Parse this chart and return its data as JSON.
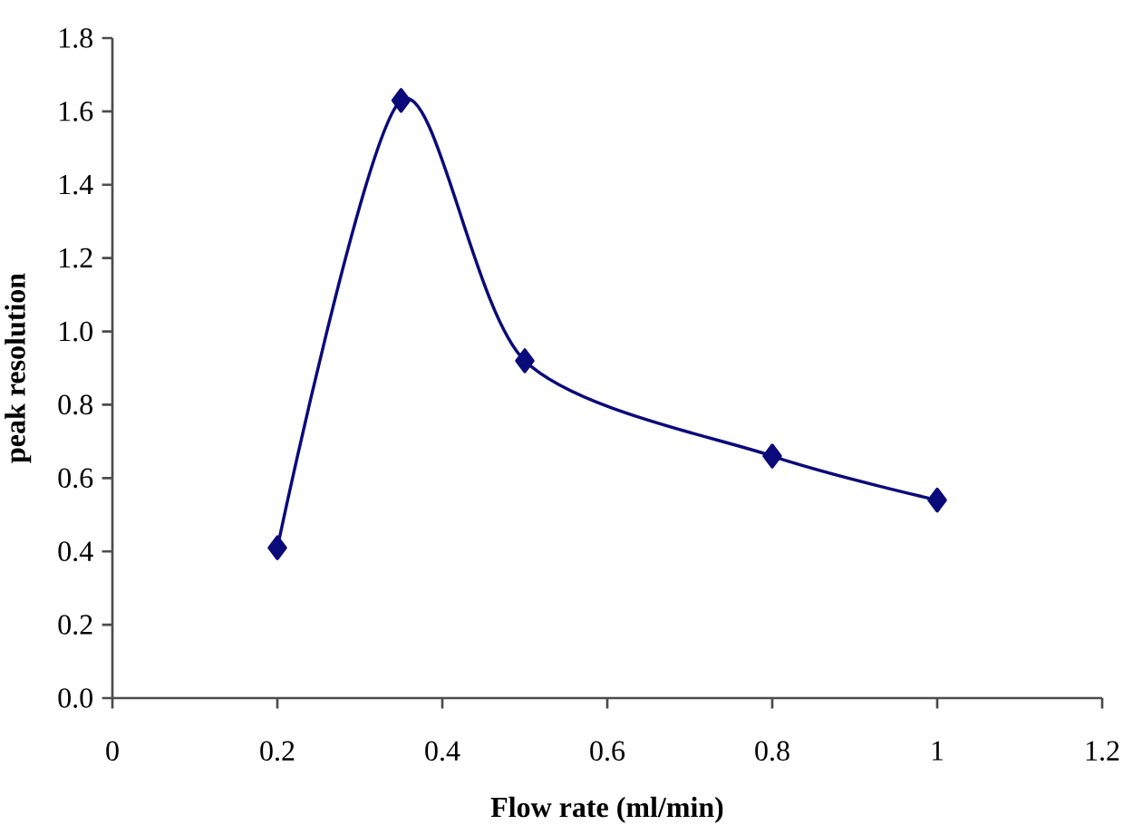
{
  "chart_data": {
    "type": "line",
    "xlabel": "Flow rate (ml/min)",
    "ylabel": "peak resolution",
    "x": [
      0.2,
      0.35,
      0.5,
      0.8,
      1.0
    ],
    "series": [
      {
        "color": "#0a0a7a",
        "values": [
          0.41,
          1.63,
          0.92,
          0.66,
          0.54
        ]
      }
    ],
    "xlim": [
      0,
      1.2
    ],
    "xticks": [
      0,
      0.2,
      0.4,
      0.6,
      0.8,
      1,
      1.2
    ],
    "ylim": [
      0,
      1.8
    ],
    "yticks": [
      {
        "value": 0,
        "label": "0.0"
      },
      0.2,
      0.4,
      0.6,
      0.8,
      {
        "value": 1,
        "label": "1.0"
      },
      1.2,
      1.4,
      1.6,
      1.8
    ],
    "marker": "diamond",
    "line_style": "solid"
  }
}
